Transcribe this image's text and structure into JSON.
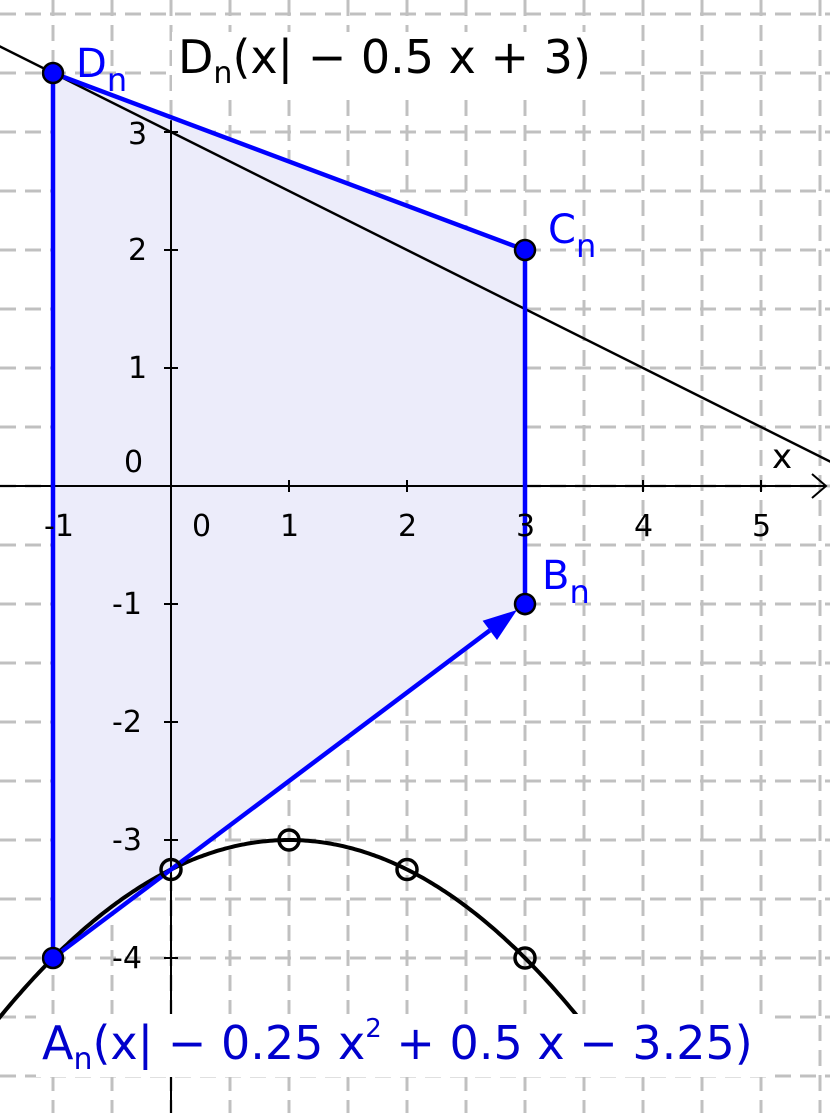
{
  "diagram": {
    "x_axis": {
      "label": "x",
      "range": [
        -1.45,
        5.56
      ],
      "ticks": [
        "-1",
        "0",
        "1",
        "2",
        "3",
        "4",
        "5"
      ]
    },
    "y_axis": {
      "range": [
        -5.25,
        4.12
      ],
      "ticks": [
        "3",
        "2",
        "1",
        "0",
        "-1",
        "-2",
        "-3",
        "-4"
      ]
    },
    "grid": {
      "on": true,
      "step": 0.5,
      "style": "dashed",
      "color": "#c0c0c0"
    },
    "line": {
      "equation": "y = -0.5x + 3",
      "slope": -0.5,
      "intercept": 3,
      "color": "#000000"
    },
    "parabola": {
      "equation": "y = -0.25x^2 + 0.5x - 3.25",
      "a": -0.25,
      "b": 0.5,
      "c": -3.25,
      "color": "#000000",
      "open_points": [
        [
          0,
          -3.25
        ],
        [
          1,
          -3
        ],
        [
          2,
          -3.25
        ],
        [
          3,
          -4
        ]
      ]
    },
    "points": [
      {
        "name": "D",
        "sub": "n",
        "x": -1,
        "y": 3.5
      },
      {
        "name": "C",
        "sub": "n",
        "x": 3,
        "y": 2
      },
      {
        "name": "B",
        "sub": "n",
        "x": 3,
        "y": -1
      },
      {
        "name": "A",
        "sub": "n",
        "x": -1,
        "y": -4
      }
    ],
    "polygon_fill": "#ececfa",
    "accent_color": "#0000ff",
    "vector": {
      "from": "A",
      "to": "B"
    },
    "formula_d": {
      "name": "D",
      "sub": "n",
      "body": "(x| − 0.5 x + 3)"
    },
    "formula_a": {
      "name": "A",
      "sub": "n",
      "body1": "(x| − 0.25 x",
      "sup": "2",
      "body2": " + 0.5 x − 3.25)",
      "color": "#0000cc"
    }
  }
}
